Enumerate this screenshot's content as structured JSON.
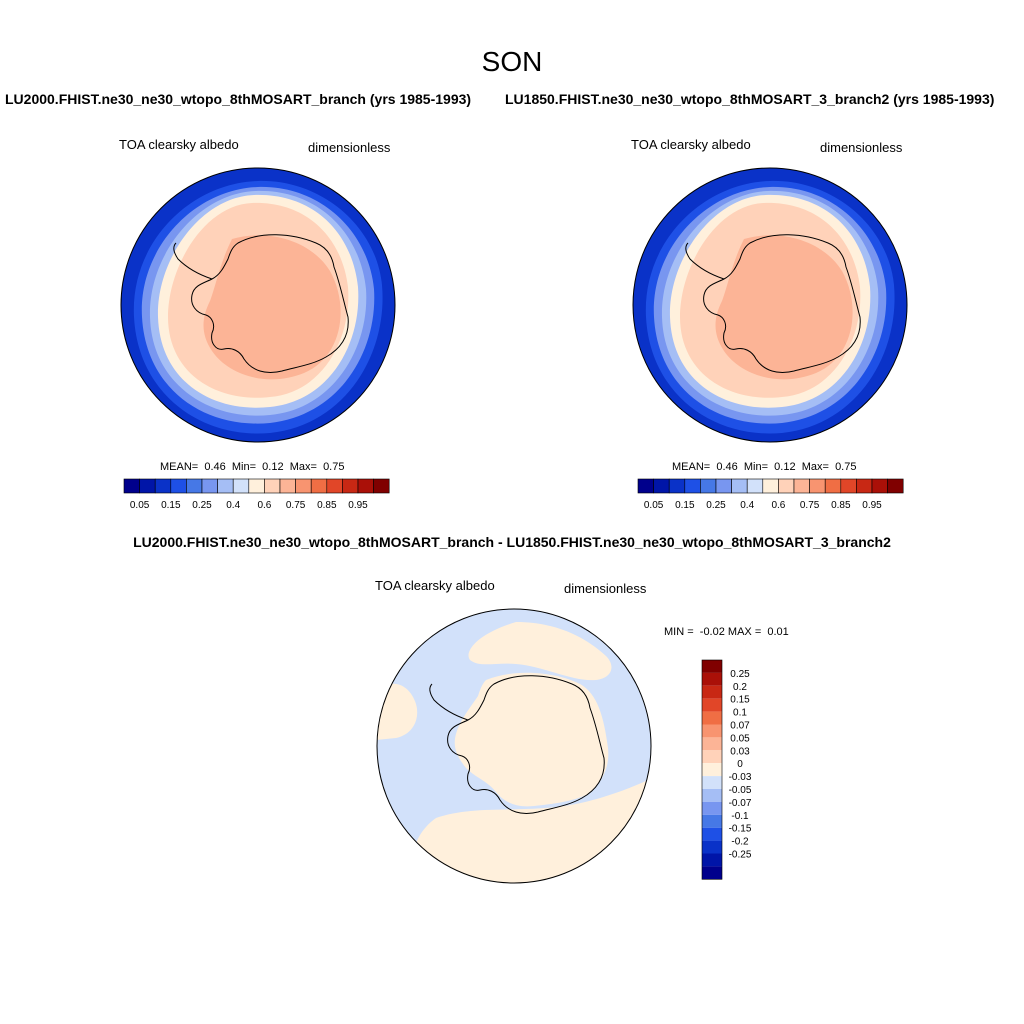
{
  "page": {
    "season": "SON"
  },
  "panels": [
    {
      "case_title": "LU2000.FHIST.ne30_ne30_wtopo_8thMOSART_branch (yrs 1985-1993)",
      "variable": "TOA clearsky albedo",
      "units": "dimensionless",
      "stats": {
        "mean_label": "MEAN=",
        "mean": "0.46",
        "min_label": "Min=",
        "min": "0.12",
        "max_label": "Max=",
        "max": "0.75"
      }
    },
    {
      "case_title": "LU1850.FHIST.ne30_ne30_wtopo_8thMOSART_3_branch2 (yrs 1985-1993)",
      "variable": "TOA clearsky albedo",
      "units": "dimensionless",
      "stats": {
        "mean_label": "MEAN=",
        "mean": "0.46",
        "min_label": "Min=",
        "min": "0.12",
        "max_label": "Max=",
        "max": "0.75"
      }
    }
  ],
  "difference": {
    "title": "LU2000.FHIST.ne30_ne30_wtopo_8thMOSART_branch - LU1850.FHIST.ne30_ne30_wtopo_8thMOSART_3_branch2",
    "variable": "TOA clearsky albedo",
    "units": "dimensionless",
    "stats": {
      "min_label": "MIN =",
      "min": "-0.02",
      "max_label": "MAX =",
      "max": "0.01"
    }
  },
  "colorbar_main": {
    "colors": [
      "#00008c",
      "#0015a8",
      "#0a32c8",
      "#1e50e6",
      "#4678e6",
      "#7896f0",
      "#a5bef5",
      "#d2e1fa",
      "#fff0dc",
      "#ffd2b9",
      "#fcb496",
      "#f89470",
      "#f06e44",
      "#e14628",
      "#c82814",
      "#aa1008",
      "#800000"
    ],
    "labels": [
      "0.05",
      "0.15",
      "0.25",
      "0.4",
      "0.6",
      "0.75",
      "0.85",
      "0.95"
    ]
  },
  "colorbar_diff": {
    "colors_top_to_bottom": [
      "#800000",
      "#aa1008",
      "#c82814",
      "#e14628",
      "#f06e44",
      "#f89470",
      "#fcb496",
      "#ffd2b9",
      "#fff0dc",
      "#d2e1fa",
      "#a5bef5",
      "#7896f0",
      "#4678e6",
      "#1e50e6",
      "#0a32c8",
      "#0015a8",
      "#00008c"
    ],
    "labels": [
      "0.25",
      "0.2",
      "0.15",
      "0.1",
      "0.07",
      "0.05",
      "0.03",
      "0",
      "-0.03",
      "-0.05",
      "-0.07",
      "-0.1",
      "-0.15",
      "-0.2",
      "-0.25"
    ]
  }
}
